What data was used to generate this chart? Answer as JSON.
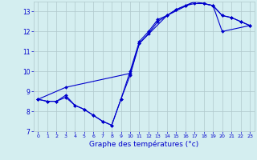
{
  "xlabel": "Graphe des températures (°c)",
  "xlim": [
    -0.5,
    23.5
  ],
  "ylim": [
    7,
    13.5
  ],
  "yticks": [
    7,
    8,
    9,
    10,
    11,
    12,
    13
  ],
  "xticks": [
    0,
    1,
    2,
    3,
    4,
    5,
    6,
    7,
    8,
    9,
    10,
    11,
    12,
    13,
    14,
    15,
    16,
    17,
    18,
    19,
    20,
    21,
    22,
    23
  ],
  "bg_color": "#d4eef0",
  "grid_color": "#b0c8cc",
  "line_color": "#0000cc",
  "line1_x": [
    0,
    1,
    2,
    3,
    4,
    5,
    6,
    7,
    8,
    9,
    10,
    11,
    12,
    13,
    14,
    15,
    16,
    17,
    18,
    19,
    20,
    21,
    22,
    23
  ],
  "line1_y": [
    8.6,
    8.5,
    8.5,
    8.7,
    8.3,
    8.1,
    7.8,
    7.5,
    7.3,
    8.6,
    9.8,
    11.4,
    11.9,
    12.5,
    12.8,
    13.1,
    13.3,
    13.5,
    13.4,
    13.3,
    12.8,
    12.7,
    12.5,
    12.3
  ],
  "line2_x": [
    0,
    1,
    2,
    3,
    4,
    5,
    6,
    7,
    8,
    9,
    10,
    11,
    12,
    13,
    14,
    15,
    16,
    17,
    18,
    19,
    20,
    21,
    22,
    23
  ],
  "line2_y": [
    8.6,
    8.5,
    8.5,
    8.8,
    8.3,
    8.1,
    7.8,
    7.5,
    7.3,
    8.6,
    10.0,
    11.5,
    12.0,
    12.6,
    12.8,
    13.1,
    13.3,
    13.4,
    13.4,
    13.3,
    12.8,
    12.7,
    12.5,
    12.3
  ],
  "line3_x": [
    0,
    3,
    10,
    11,
    14,
    17,
    19,
    20,
    23
  ],
  "line3_y": [
    8.6,
    9.2,
    9.9,
    11.4,
    12.8,
    13.5,
    13.3,
    12.0,
    12.3
  ]
}
